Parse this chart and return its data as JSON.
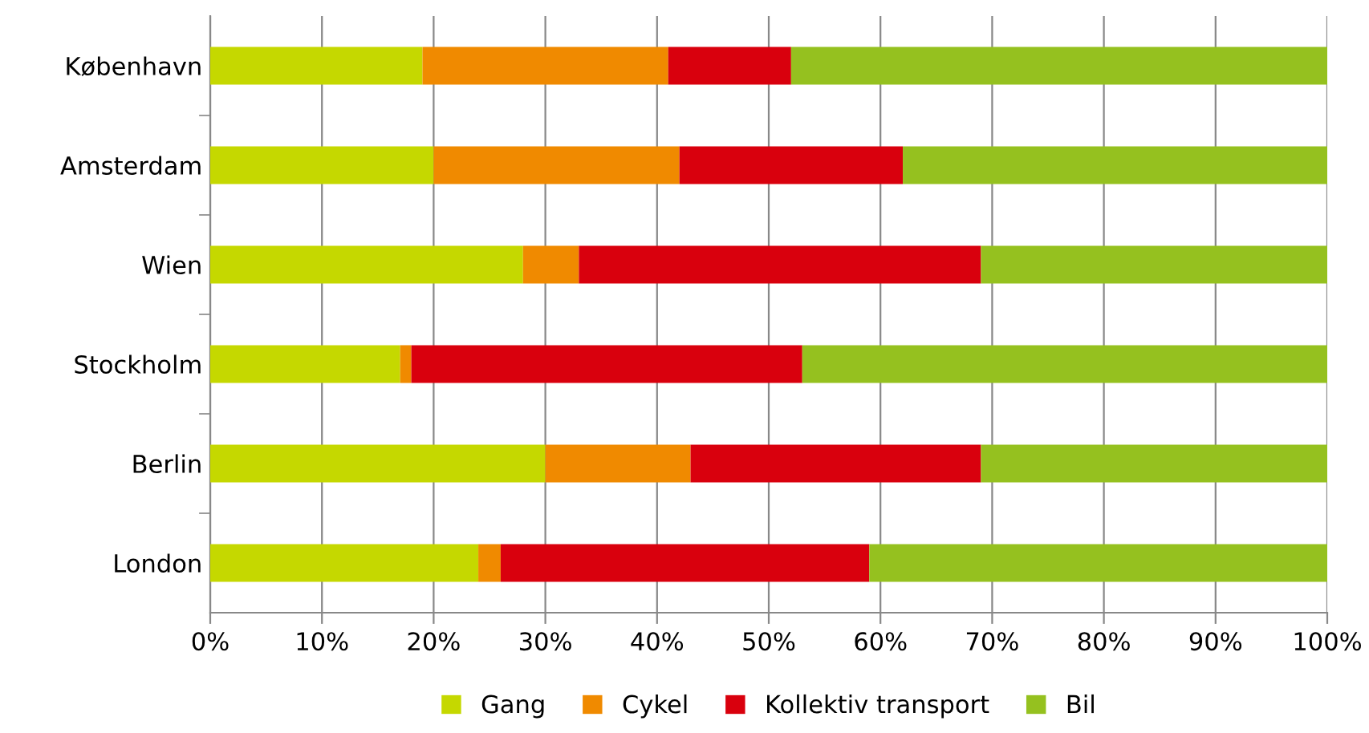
{
  "chart_data": {
    "type": "bar",
    "orientation": "horizontal",
    "stacked": true,
    "categories": [
      "København",
      "Amsterdam",
      "Wien",
      "Stockholm",
      "Berlin",
      "London"
    ],
    "series": [
      {
        "name": "Gang",
        "color": "#c5d800",
        "values": [
          19,
          20,
          28,
          17,
          30,
          24
        ]
      },
      {
        "name": "Cykel",
        "color": "#f08a00",
        "values": [
          22,
          22,
          5,
          1,
          13,
          2
        ]
      },
      {
        "name": "Kollektiv transport",
        "color": "#d9000d",
        "values": [
          11,
          20,
          36,
          35,
          26,
          33
        ]
      },
      {
        "name": "Bil",
        "color": "#95c11f",
        "values": [
          48,
          38,
          31,
          47,
          31,
          41
        ]
      }
    ],
    "xlim": [
      0,
      100
    ],
    "xticks": [
      {
        "value": 0,
        "label": "0%"
      },
      {
        "value": 10,
        "label": "10%"
      },
      {
        "value": 20,
        "label": "20%"
      },
      {
        "value": 30,
        "label": "30%"
      },
      {
        "value": 40,
        "label": "40%"
      },
      {
        "value": 50,
        "label": "50%"
      },
      {
        "value": 60,
        "label": "60%"
      },
      {
        "value": 70,
        "label": "70%"
      },
      {
        "value": 80,
        "label": "80%"
      },
      {
        "value": 90,
        "label": "90%"
      },
      {
        "value": 100,
        "label": "100%"
      }
    ],
    "grid": "x",
    "legend": "bottom"
  }
}
